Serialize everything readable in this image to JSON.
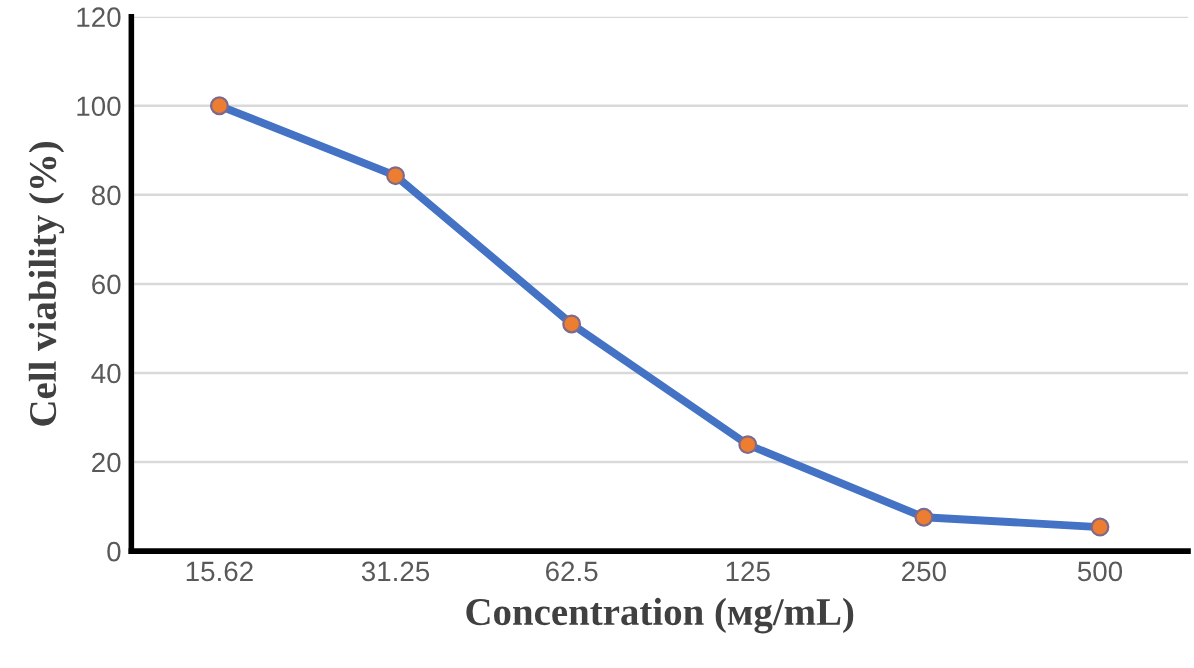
{
  "chart_data": {
    "type": "line",
    "xlabel": "Concentration (мg/mL)",
    "ylabel": "Cell viability (%)",
    "categories": [
      "15.62",
      "31.25",
      "62.5",
      "125",
      "250",
      "500"
    ],
    "series": [
      {
        "color": "#4472c4",
        "values": [
          100,
          84.3,
          51,
          23.9,
          7.6,
          5.4
        ]
      }
    ],
    "marker": "circle",
    "line_style": "solid",
    "grid": "y",
    "ylim": [
      0,
      120
    ],
    "yticks": [
      0,
      20,
      40,
      60,
      80,
      100,
      120
    ]
  }
}
